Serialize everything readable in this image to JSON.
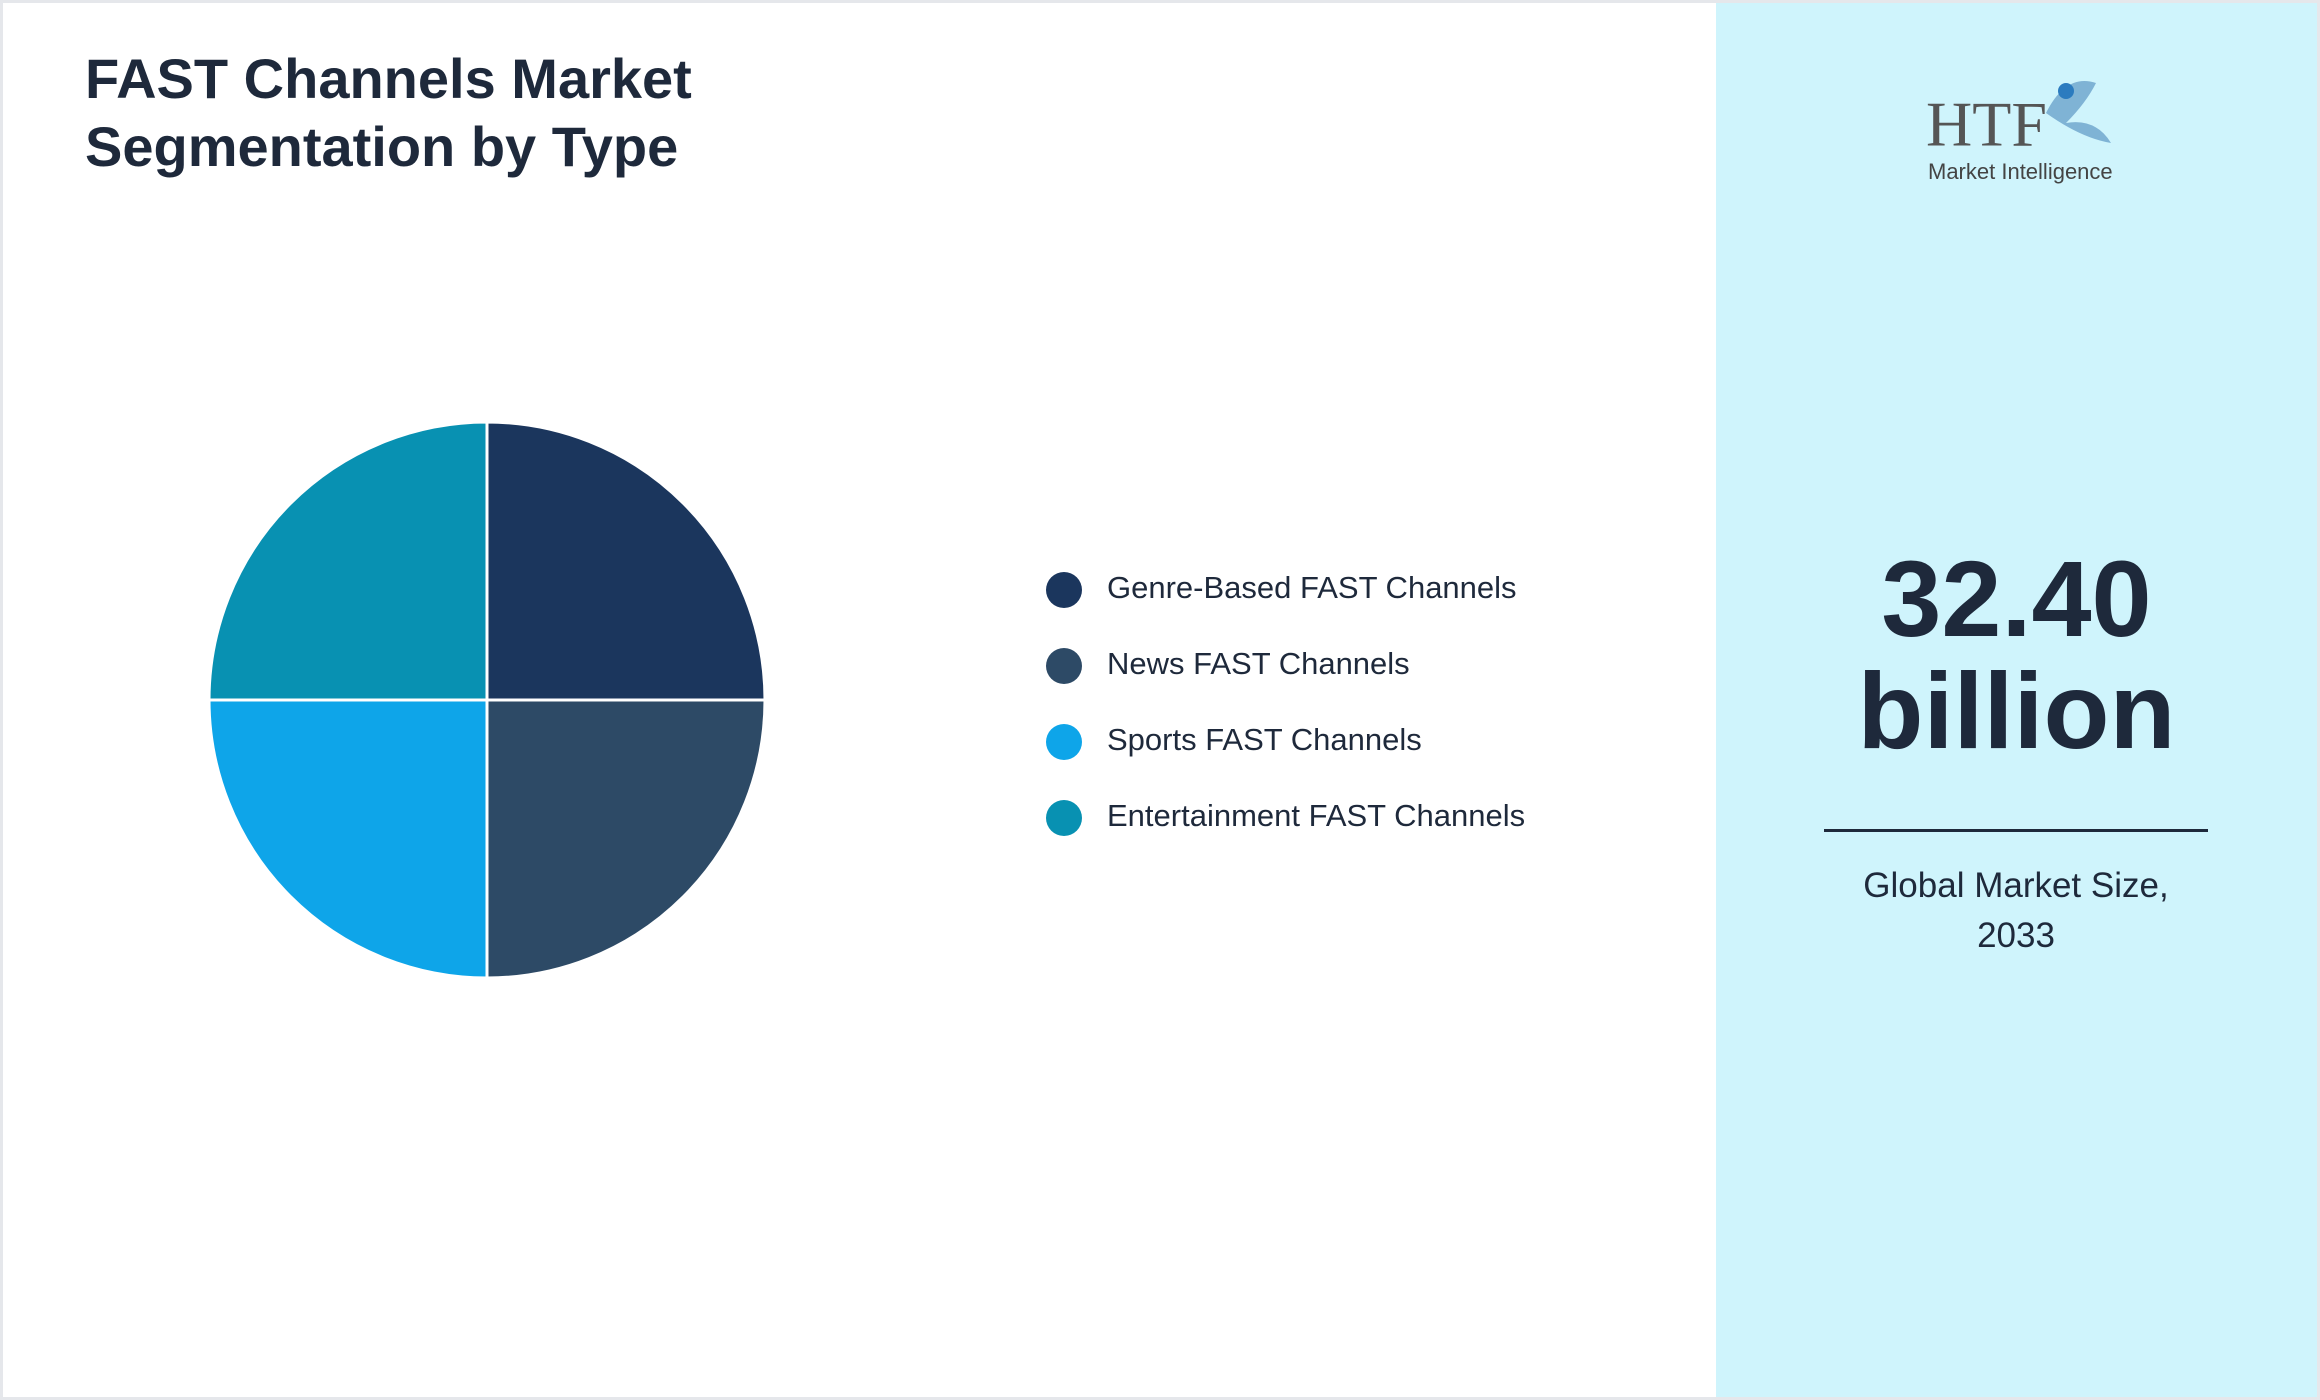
{
  "chart_data": {
    "type": "pie",
    "title": "FAST Channels Market Segmentation by Type",
    "categories": [
      "Genre-Based FAST Channels",
      "News FAST Channels",
      "Sports FAST Channels",
      "Entertainment FAST Channels"
    ],
    "values": [
      25,
      25,
      25,
      25
    ],
    "colors": [
      "#1b365d",
      "#2d4a66",
      "#0ea5e9",
      "#0891b2"
    ]
  },
  "logo": {
    "mark": "HTF",
    "text": "Market Intelligence"
  },
  "market_size": {
    "value": "32.40",
    "unit": "billion",
    "caption": "Global Market Size, 2033"
  }
}
